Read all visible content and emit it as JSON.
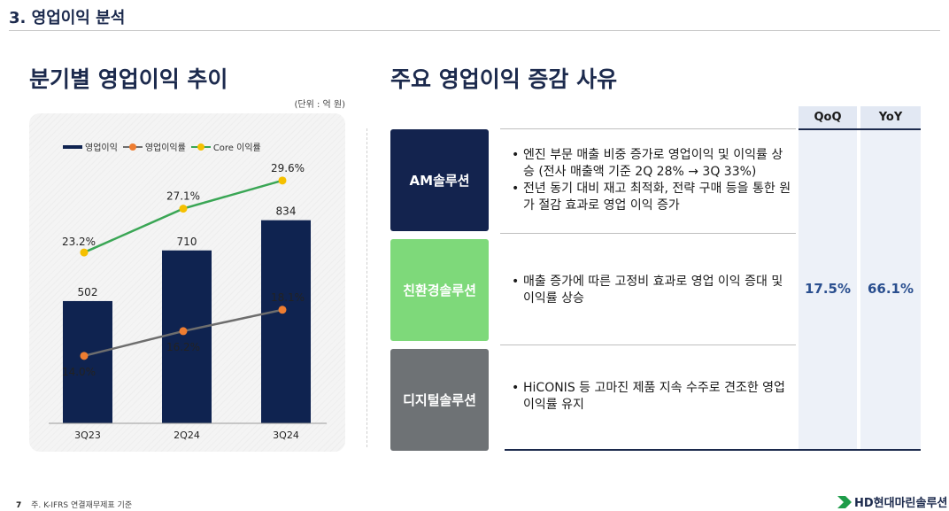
{
  "section_title": "3. 영업이익 분석",
  "left_heading": "분기별 영업이익 추이",
  "right_heading": "주요 영업이익 증감 사유",
  "unit_label": "(단위 : 억 원)",
  "chart_data": {
    "type": "bar",
    "categories": [
      "3Q23",
      "2Q24",
      "3Q24"
    ],
    "series": [
      {
        "name": "영업이익",
        "type": "bar",
        "values": [
          502,
          710,
          834
        ],
        "labels": [
          "502",
          "710",
          "834"
        ],
        "color": "#0f2350"
      },
      {
        "name": "영업이익률",
        "type": "line",
        "values": [
          14.0,
          16.2,
          18.1
        ],
        "labels": [
          "14.0%",
          "16.2%",
          "18.1%"
        ],
        "color": "#6e6e6e",
        "marker_color": "#ee7d31"
      },
      {
        "name": "Core 이익률",
        "type": "line",
        "values": [
          23.2,
          27.1,
          29.6
        ],
        "labels": [
          "23.2%",
          "27.1%",
          "29.6%"
        ],
        "color": "#3aa655",
        "marker_color": "#f5c000"
      }
    ],
    "bar_ylim": [
      0,
      1200
    ],
    "line_ylim": [
      8,
      34
    ],
    "grid": false,
    "legend_position": "top-left"
  },
  "table": {
    "columns": [
      "QoQ",
      "YoY"
    ],
    "values": [
      "17.5%",
      "66.1%"
    ],
    "rows": [
      {
        "category": "AM솔루션",
        "color": "#13234e",
        "bullets": [
          "엔진 부문 매출 비중 증가로 영업이익 및 이익률 상승 (전사 매출액 기준 2Q 28% → 3Q 33%)",
          "전년 동기 대비 재고 최적화, 전략 구매 등을 통한 원가 절감 효과로 영업 이익 증가"
        ]
      },
      {
        "category": "친환경솔루션",
        "color": "#7ed97a",
        "bullets": [
          "매출 증가에 따른 고정비 효과로 영업 이익 증대 및 이익률 상승"
        ]
      },
      {
        "category": "디지털솔루션",
        "color": "#6e7275",
        "bullets": [
          "HiCONIS 등 고마진 제품 지속 수주로 견조한 영업이익률 유지"
        ]
      }
    ]
  },
  "footnote": {
    "page": "7",
    "text": "주. K-IFRS 연결재무제표 기준"
  },
  "logo_text": "HD현대마린솔루션"
}
